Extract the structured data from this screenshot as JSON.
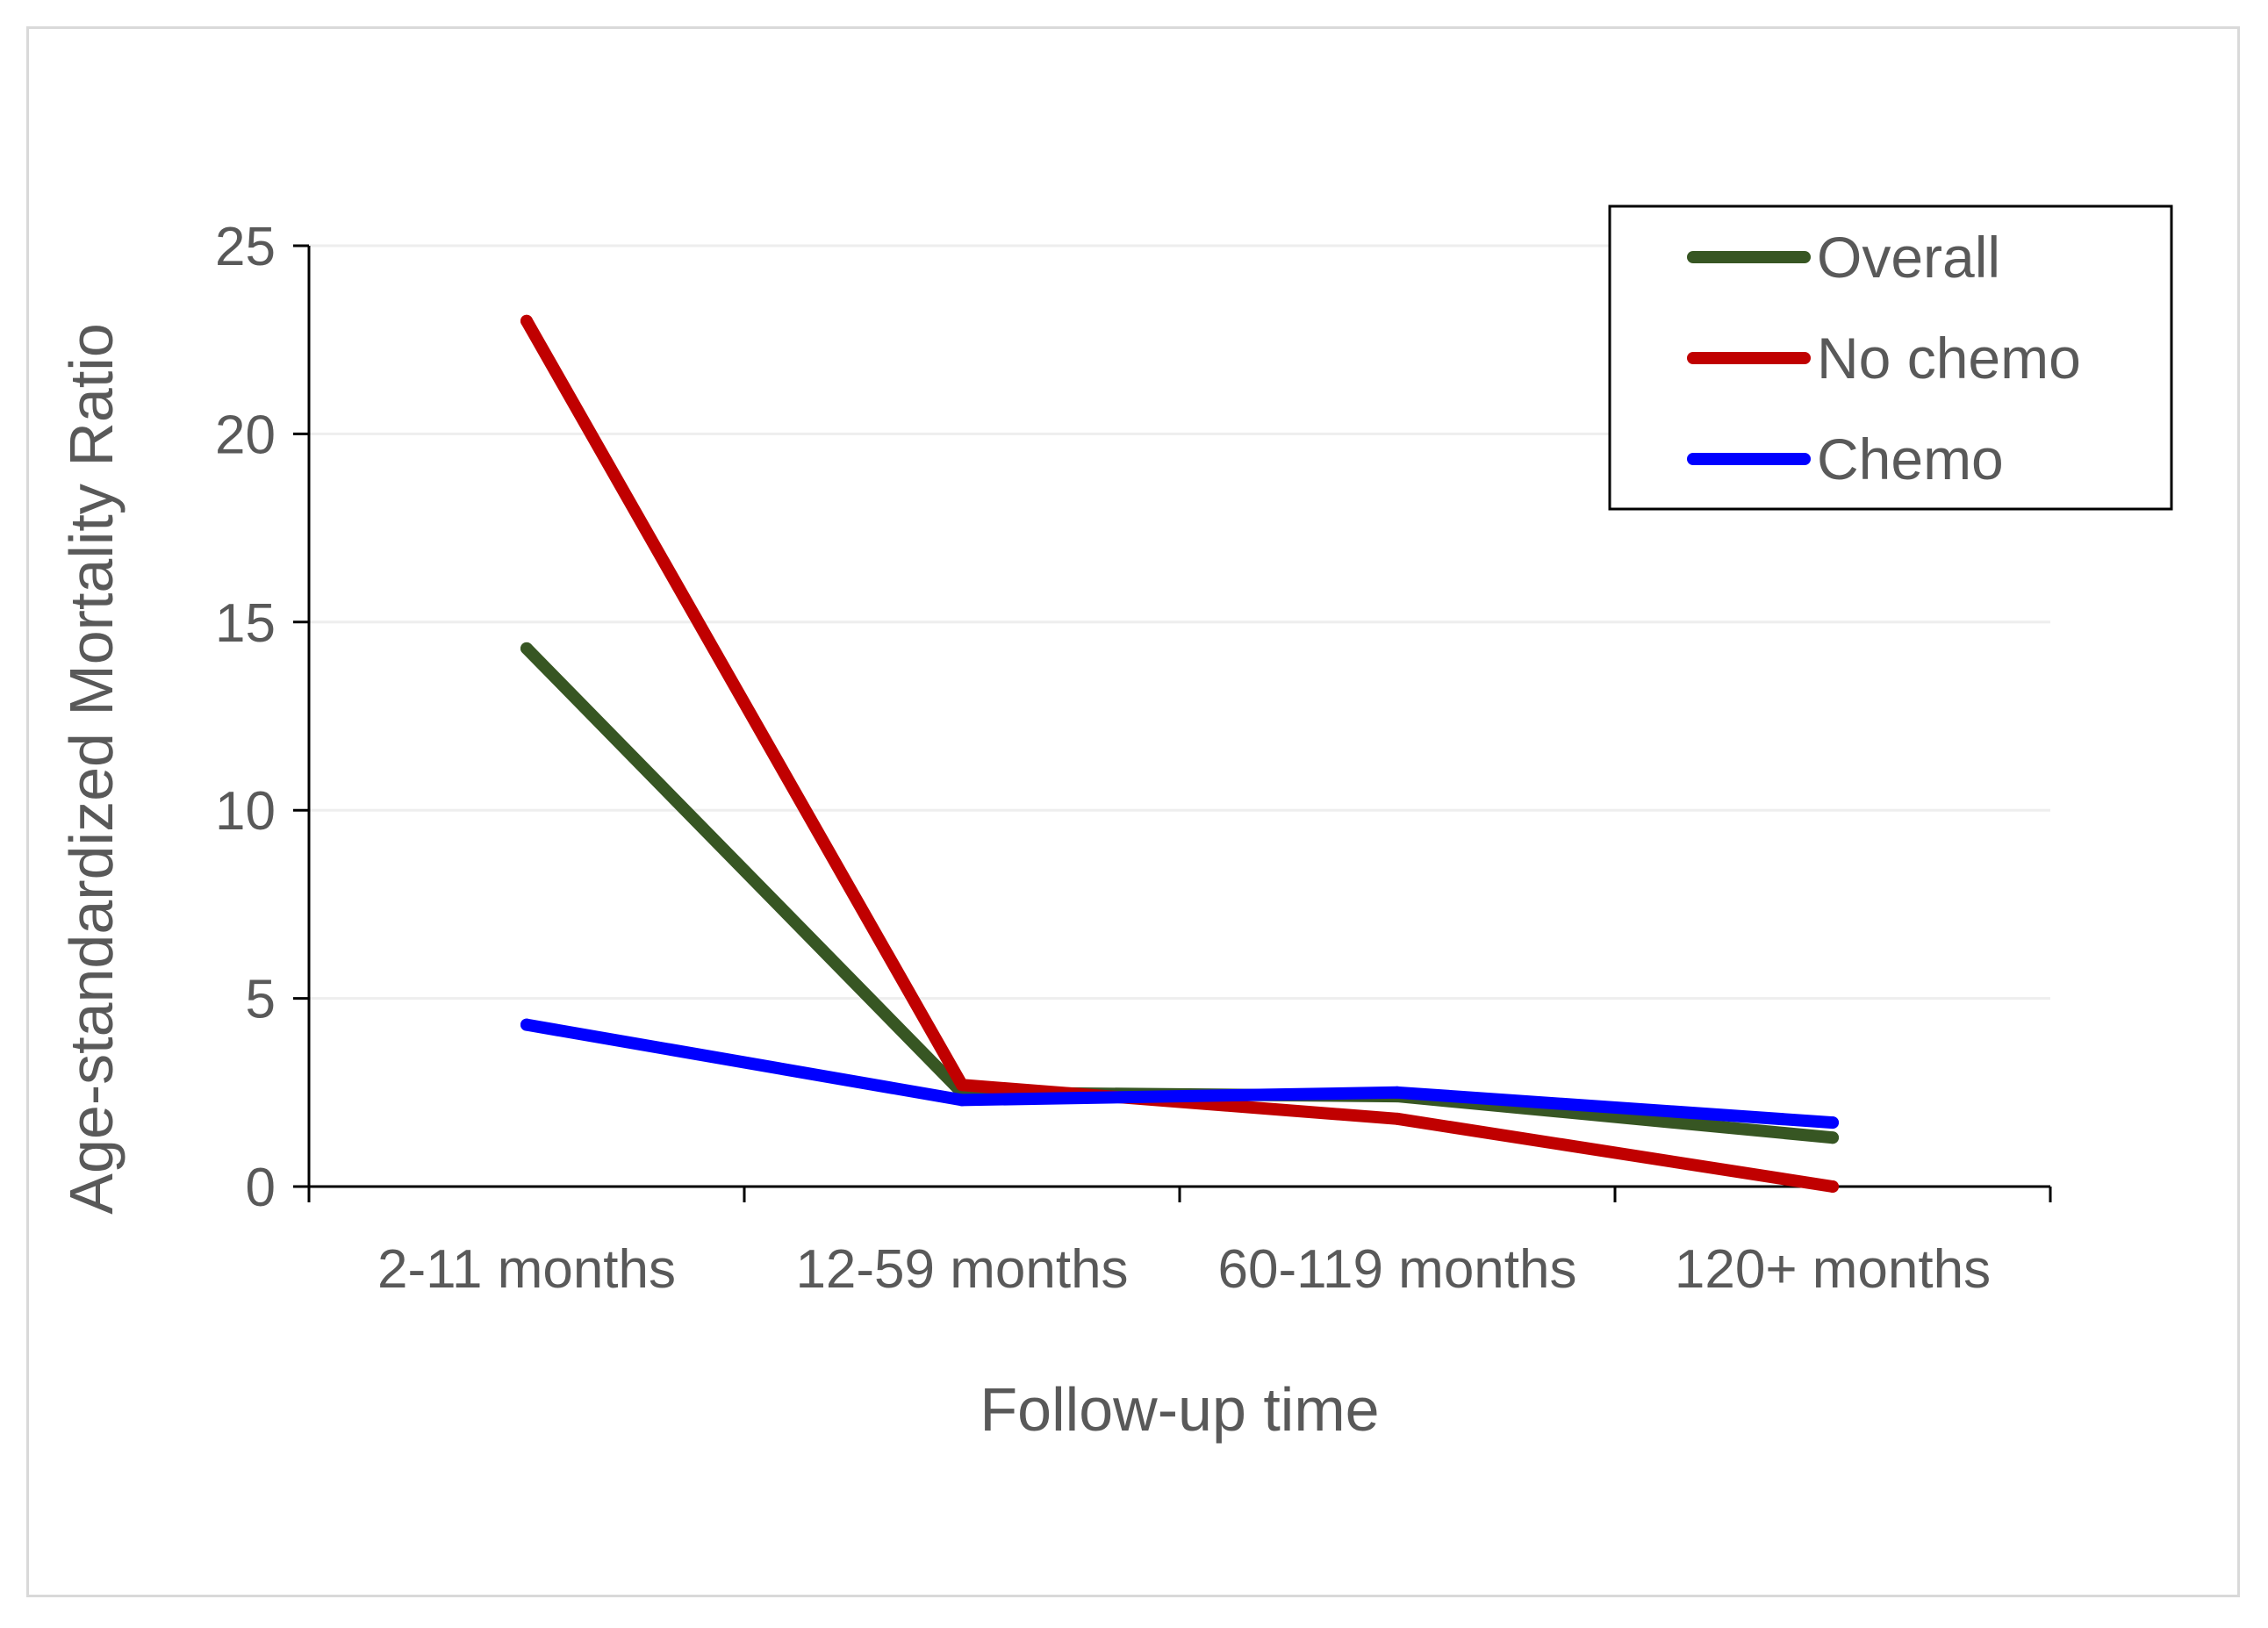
{
  "chart_data": {
    "type": "line",
    "xlabel": "Follow-up time",
    "ylabel": "Age-standardized Mortality Ratio",
    "categories": [
      "2-11 months",
      "12-59 months",
      "60-119 months",
      "120+ months"
    ],
    "ylim": [
      0,
      25
    ],
    "yticks": [
      "0",
      "5",
      "10",
      "15",
      "20",
      "25"
    ],
    "grid": true,
    "legend_position": "top-right",
    "series": [
      {
        "name": "Overall",
        "color": "#375623",
        "values": [
          14.3,
          2.5,
          2.4,
          1.3
        ]
      },
      {
        "name": "No chemo",
        "color": "#c00000",
        "values": [
          23.0,
          2.7,
          1.8,
          0.0
        ]
      },
      {
        "name": "Chemo",
        "color": "#0000ff",
        "values": [
          4.3,
          2.3,
          2.5,
          1.7
        ]
      }
    ]
  }
}
